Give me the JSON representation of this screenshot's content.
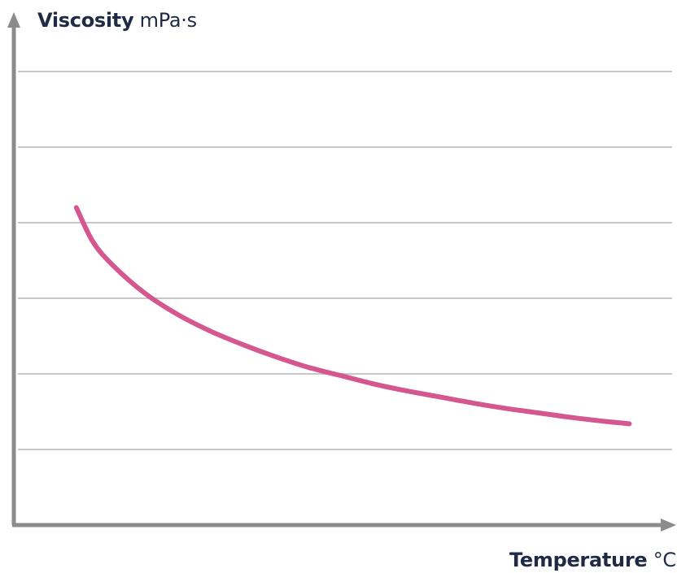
{
  "chart_data": {
    "type": "line",
    "title": "",
    "ylabel": "Viscosity",
    "ylabel_unit": "mPa·s",
    "xlabel": "Temperature",
    "xlabel_unit": "°C",
    "x_ticks_labeled": false,
    "y_ticks_labeled": false,
    "grid": "horizontal",
    "xlim": [
      0,
      100
    ],
    "ylim": [
      0,
      7
    ],
    "y_gridlines": [
      1,
      2,
      3,
      4,
      5,
      6
    ],
    "series": [
      {
        "color": "#d4578f",
        "x": [
          9.5,
          12,
          15,
          20,
          25,
          30,
          35,
          40,
          45,
          50,
          55,
          60,
          65,
          70,
          75,
          80,
          85,
          90,
          93.5
        ],
        "y": [
          4.2,
          3.75,
          3.44,
          3.06,
          2.78,
          2.56,
          2.38,
          2.22,
          2.08,
          1.97,
          1.86,
          1.77,
          1.69,
          1.61,
          1.54,
          1.48,
          1.42,
          1.37,
          1.34
        ]
      }
    ]
  },
  "colors": {
    "axis": "#8c8c8c",
    "grid": "#c8c8c8",
    "curve": "#d4578f",
    "text": "#1f2a44"
  }
}
